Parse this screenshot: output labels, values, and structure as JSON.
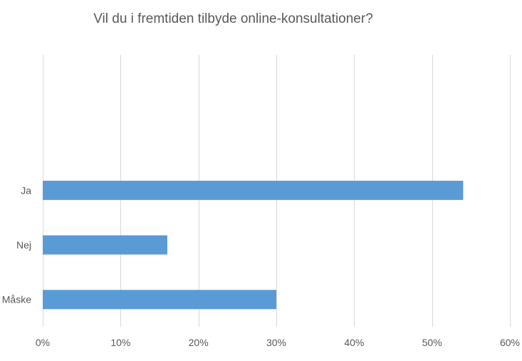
{
  "chart_data": {
    "type": "bar",
    "orientation": "horizontal",
    "title": "Vil du i fremtiden tilbyde online-konsultationer?",
    "xlabel": "",
    "ylabel": "",
    "categories": [
      "Ja",
      "Nej",
      "Måske"
    ],
    "values": [
      54,
      16,
      30
    ],
    "value_unit": "%",
    "xlim": [
      0,
      60
    ],
    "xticks": [
      0,
      10,
      20,
      30,
      40,
      50,
      60
    ],
    "xtick_labels": [
      "0%",
      "10%",
      "20%",
      "30%",
      "40%",
      "50%",
      "60%"
    ],
    "grid": "vertical",
    "legend": "none",
    "bar_color": "#5B9BD5",
    "grid_color": "#D9D9D9",
    "text_color": "#595959"
  }
}
